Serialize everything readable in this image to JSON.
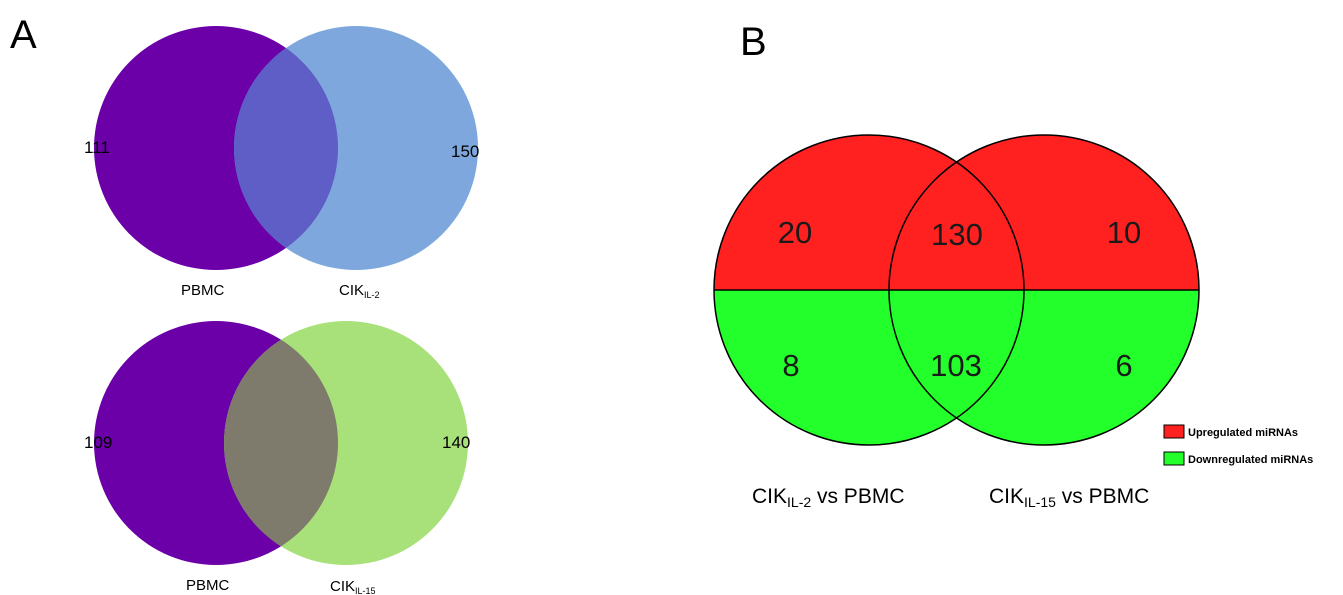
{
  "panel_a": {
    "letter": "A",
    "top_venn": {
      "left_set": {
        "label": "PBMC",
        "count": "111",
        "color": "#6b00a8"
      },
      "right_set": {
        "label_main": "CIK",
        "label_sub": "IL-2",
        "count": "150",
        "color": "#7ea8dd"
      },
      "overlap_color": "#5e5ec6"
    },
    "bottom_venn": {
      "left_set": {
        "label": "PBMC",
        "count": "109",
        "color": "#6b00a8"
      },
      "right_set": {
        "label_main": "CIK",
        "label_sub": "IL-15",
        "count": "140",
        "color": "#a8e07a"
      },
      "overlap_color": "#7e7a6c"
    }
  },
  "panel_b": {
    "letter": "B",
    "up_color": "#ff2020",
    "down_color": "#22ff2a",
    "up_counts": {
      "left": "20",
      "middle": "130",
      "right": "10"
    },
    "down_counts": {
      "left": "8",
      "middle": "103",
      "right": "6"
    },
    "left_label": {
      "main": "CIK",
      "sub": "IL-2",
      "rest": " vs PBMC"
    },
    "right_label": {
      "main": "CIK",
      "sub": "IL-15",
      "rest": " vs PBMC"
    },
    "legend": [
      {
        "label": "Upregulated miRNAs",
        "color": "#ff2020"
      },
      {
        "label": "Downregulated miRNAs",
        "color": "#22ff2a"
      }
    ]
  }
}
